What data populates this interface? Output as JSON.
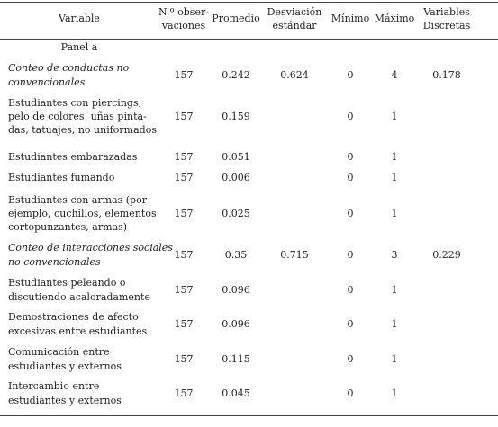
{
  "table": {
    "header": [
      [
        "Variable"
      ],
      [
        "N.º obser-",
        "vaciones"
      ],
      [
        "Promedio"
      ],
      [
        "Desviación",
        "estándar"
      ],
      [
        "Mínimo"
      ],
      [
        "Máximo"
      ],
      [
        "Variables",
        "Discretas"
      ]
    ],
    "panel": "Panel a",
    "rows": [
      {
        "label": [
          "Conteo de conductas no",
          "convencionales"
        ],
        "italic": true,
        "values": [
          157,
          0.242,
          0.624,
          0,
          4,
          0.178
        ]
      },
      {
        "label": [
          "Estudiantes con piercings,",
          "pelo de colores, uñas pinta-",
          "das, tatuajes, no uniformados"
        ],
        "italic": false,
        "values": [
          157,
          0.159,
          null,
          0,
          1,
          null
        ]
      },
      {
        "label": [
          "Estudiantes embarazadas"
        ],
        "italic": false,
        "values": [
          157,
          0.051,
          null,
          0,
          1,
          null
        ]
      },
      {
        "label": [
          "Estudiantes fumando"
        ],
        "italic": false,
        "values": [
          157,
          0.006,
          null,
          0,
          1,
          null
        ]
      },
      {
        "label": [
          "Estudiantes con armas (por",
          "ejemplo, cuchillos, elementos",
          "cortopunzantes, armas)"
        ],
        "italic": false,
        "values": [
          157,
          0.025,
          null,
          0,
          1,
          null
        ]
      },
      {
        "label": [
          "Conteo de interacciones sociales",
          "no convencionales"
        ],
        "italic": true,
        "values": [
          157,
          0.35,
          0.715,
          0,
          3,
          0.229
        ]
      },
      {
        "label": [
          "Estudiantes peleando o",
          "discutiendo acaloradamente"
        ],
        "italic": false,
        "values": [
          157,
          0.096,
          null,
          0,
          1,
          null
        ]
      },
      {
        "label": [
          "Demostraciones de afecto",
          "excesivas entre estudiantes"
        ],
        "italic": false,
        "values": [
          157,
          0.096,
          null,
          0,
          1,
          null
        ]
      },
      {
        "label": [
          "Comunicación entre",
          "estudiantes y externos"
        ],
        "italic": false,
        "values": [
          157,
          0.115,
          null,
          0,
          1,
          null
        ]
      },
      {
        "label": [
          "Intercambio entre",
          "estudiantes y externos"
        ],
        "italic": false,
        "values": [
          157,
          0.045,
          null,
          0,
          1,
          null
        ]
      }
    ]
  }
}
